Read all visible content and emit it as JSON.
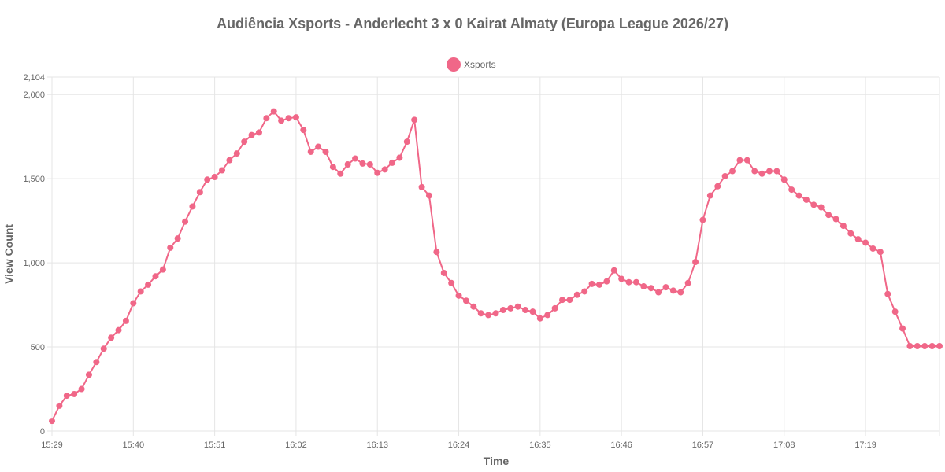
{
  "chart_data": {
    "type": "line",
    "title": "Audiência Xsports - Anderlecht 3 x 0 Kairat Almaty (Europa League 2026/27)",
    "xlabel": "Time",
    "ylabel": "View Count",
    "ylim": [
      0,
      2104
    ],
    "y_ticks": [
      {
        "value": 0,
        "label": "0"
      },
      {
        "value": 500,
        "label": "500"
      },
      {
        "value": 1000,
        "label": "1,000"
      },
      {
        "value": 1500,
        "label": "1,500"
      },
      {
        "value": 2000,
        "label": "2,000"
      },
      {
        "value": 2104,
        "label": "2,104"
      }
    ],
    "x_ticks": [
      "15:29",
      "15:40",
      "15:51",
      "16:02",
      "16:13",
      "16:24",
      "16:35",
      "16:46",
      "16:57",
      "17:08",
      "17:19"
    ],
    "x_tick_step": 11,
    "legend": {
      "position": "top",
      "entries": [
        "Xsports"
      ]
    },
    "grid": true,
    "color": "#f06788",
    "series": [
      {
        "name": "Xsports",
        "values": [
          60,
          150,
          210,
          220,
          250,
          335,
          410,
          490,
          555,
          600,
          655,
          760,
          830,
          870,
          920,
          960,
          1090,
          1145,
          1245,
          1335,
          1420,
          1495,
          1510,
          1550,
          1610,
          1650,
          1720,
          1760,
          1775,
          1860,
          1900,
          1845,
          1860,
          1865,
          1790,
          1660,
          1690,
          1660,
          1570,
          1530,
          1585,
          1620,
          1590,
          1585,
          1535,
          1555,
          1595,
          1625,
          1720,
          1850,
          1450,
          1400,
          1065,
          940,
          880,
          805,
          775,
          740,
          700,
          690,
          700,
          720,
          730,
          740,
          720,
          710,
          670,
          690,
          730,
          780,
          780,
          810,
          830,
          875,
          870,
          890,
          955,
          905,
          885,
          885,
          860,
          850,
          825,
          855,
          835,
          825,
          880,
          1005,
          1255,
          1400,
          1455,
          1515,
          1545,
          1610,
          1610,
          1545,
          1530,
          1545,
          1545,
          1495,
          1435,
          1400,
          1375,
          1345,
          1330,
          1285,
          1260,
          1220,
          1175,
          1140,
          1120,
          1085,
          1065,
          815,
          710,
          610,
          505,
          505,
          505,
          505,
          505
        ]
      }
    ]
  }
}
